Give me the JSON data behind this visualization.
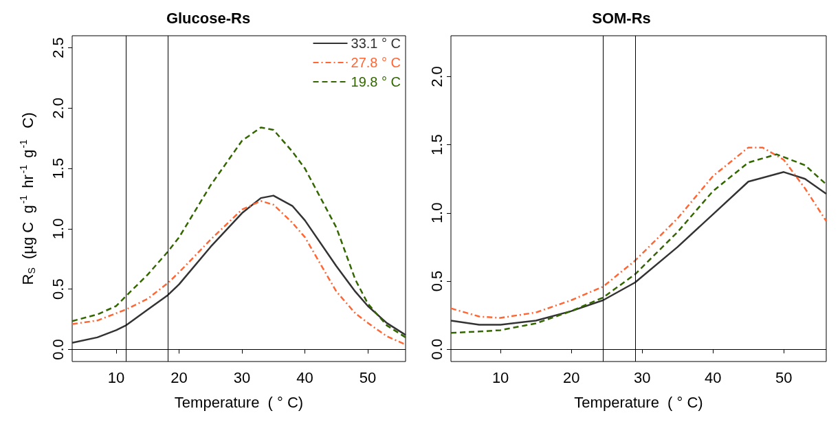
{
  "chart_data": [
    {
      "type": "line",
      "title": "Glucose-Rs",
      "xlabel": "Temperature  ( ° C)",
      "ylabel": "R$_{S}$  (µg C  g$^{-1}$ hr$^{-1}$ g$^{-1}$  C)",
      "xlim": [
        3,
        56
      ],
      "xticks": [
        10,
        20,
        30,
        40,
        50
      ],
      "ylim": [
        -0.1,
        2.6
      ],
      "yticks": [
        {
          "value": 0,
          "label": "0.0"
        },
        0.5,
        {
          "value": 1,
          "label": "1.0"
        },
        1.5,
        {
          "value": 2,
          "label": "2.0"
        },
        2.5
      ],
      "grid": false,
      "legend": "top right",
      "marker": "none",
      "series": [
        {
          "name": "33.1 ° C",
          "color": "#333333",
          "line_style": "solid",
          "x": [
            3,
            7,
            10,
            11.5,
            15,
            18.2,
            20,
            25,
            30,
            33,
            35,
            38,
            40,
            45,
            48,
            50,
            53,
            56
          ],
          "values": [
            0.055,
            0.1,
            0.16,
            0.198,
            0.33,
            0.45,
            0.54,
            0.85,
            1.13,
            1.255,
            1.275,
            1.19,
            1.07,
            0.69,
            0.48,
            0.36,
            0.22,
            0.12
          ]
        },
        {
          "name": "27.8 ° C",
          "color": "#ff6633",
          "line_style": "dashdot",
          "x": [
            3,
            7,
            10,
            11.5,
            15,
            18.2,
            20,
            25,
            30,
            33,
            35,
            38,
            40,
            45,
            48,
            50,
            53,
            56
          ],
          "values": [
            0.21,
            0.24,
            0.3,
            0.33,
            0.42,
            0.55,
            0.64,
            0.91,
            1.16,
            1.23,
            1.2,
            1.05,
            0.93,
            0.48,
            0.3,
            0.22,
            0.11,
            0.04
          ]
        },
        {
          "name": "19.8 ° C",
          "color": "#336600",
          "line_style": "dashed",
          "x": [
            3,
            7,
            10,
            11.5,
            15,
            18.2,
            20,
            25,
            30,
            33,
            35,
            38,
            40,
            45,
            48,
            50,
            53,
            56
          ],
          "values": [
            0.235,
            0.29,
            0.36,
            0.44,
            0.62,
            0.81,
            0.93,
            1.36,
            1.73,
            1.84,
            1.82,
            1.64,
            1.5,
            1.01,
            0.58,
            0.38,
            0.2,
            0.1
          ]
        }
      ],
      "ref_lines": [
        {
          "axis": "y",
          "value": 0,
          "color": "#000000"
        },
        {
          "axis": "x",
          "value": 11.5,
          "color": "#000000"
        },
        {
          "axis": "x",
          "value": 18.2,
          "color": "#000000"
        }
      ]
    },
    {
      "type": "line",
      "title": "SOM-Rs",
      "xlabel": "Temperature  ( ° C)",
      "xlim": [
        3,
        56
      ],
      "xticks": [
        10,
        20,
        30,
        40,
        50
      ],
      "ylim": [
        -0.09,
        2.3
      ],
      "yticks": [
        {
          "value": 0,
          "label": "0.0"
        },
        0.5,
        {
          "value": 1,
          "label": "1.0"
        },
        1.5,
        {
          "value": 2,
          "label": "2.0"
        }
      ],
      "grid": false,
      "legend": false,
      "marker": "none",
      "series": [
        {
          "color": "#333333",
          "line_style": "solid",
          "x": [
            3,
            7,
            10,
            15,
            20,
            24.5,
            29,
            35,
            40,
            45,
            50,
            53,
            56
          ],
          "values": [
            0.21,
            0.18,
            0.18,
            0.21,
            0.28,
            0.36,
            0.49,
            0.75,
            0.99,
            1.23,
            1.3,
            1.25,
            1.14
          ]
        },
        {
          "color": "#ff6633",
          "line_style": "dashdot",
          "x": [
            3,
            7,
            10,
            15,
            20,
            24.5,
            29,
            35,
            40,
            45,
            47,
            50,
            53,
            56
          ],
          "values": [
            0.3,
            0.24,
            0.23,
            0.27,
            0.36,
            0.46,
            0.65,
            0.96,
            1.27,
            1.48,
            1.48,
            1.39,
            1.18,
            0.94
          ]
        },
        {
          "color": "#336600",
          "line_style": "dashed",
          "x": [
            3,
            7,
            10,
            15,
            20,
            24.5,
            29,
            35,
            40,
            45,
            49,
            53,
            56
          ],
          "values": [
            0.12,
            0.13,
            0.14,
            0.19,
            0.28,
            0.38,
            0.55,
            0.86,
            1.16,
            1.37,
            1.43,
            1.35,
            1.21
          ]
        }
      ],
      "ref_lines": [
        {
          "axis": "y",
          "value": 0,
          "color": "#000000"
        },
        {
          "axis": "x",
          "value": 24.5,
          "color": "#000000"
        },
        {
          "axis": "x",
          "value": 29,
          "color": "#000000"
        }
      ]
    }
  ]
}
